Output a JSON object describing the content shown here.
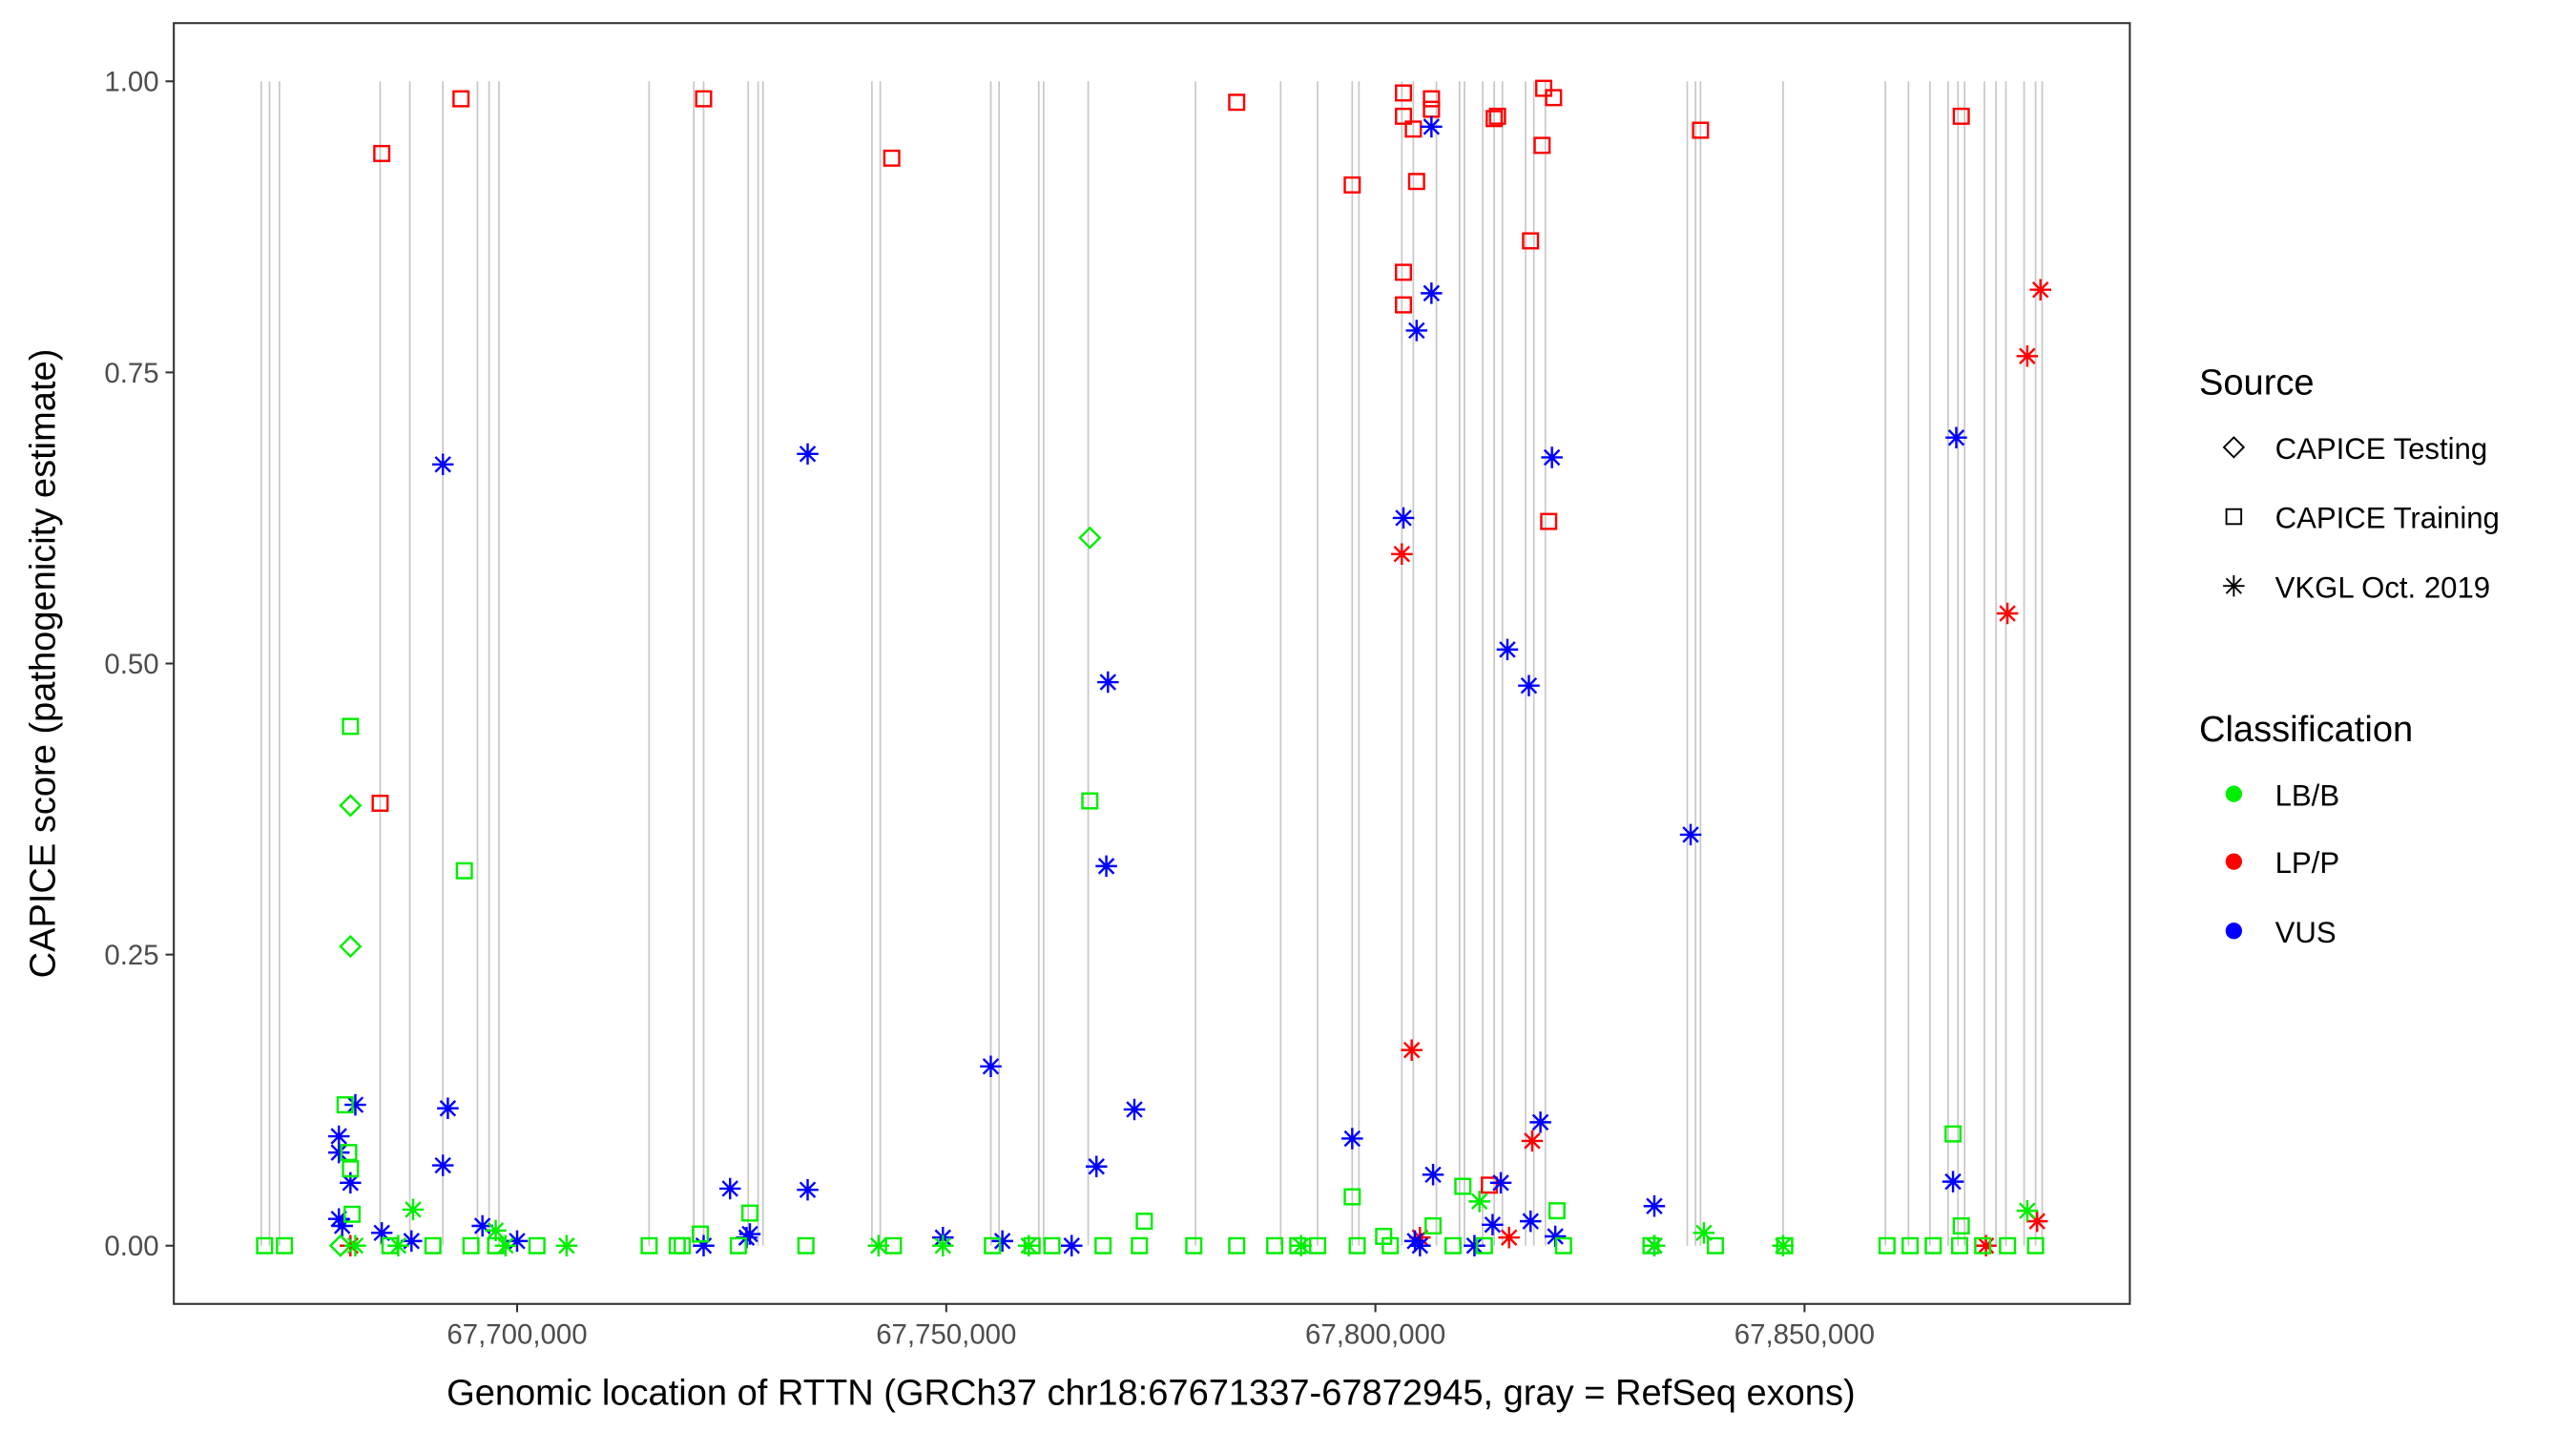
{
  "chart_data": {
    "type": "scatter",
    "title": "",
    "xlabel": "Genomic location of RTTN (GRCh37 chr18:67671337-67872945, gray = RefSeq exons)",
    "ylabel": "CAPICE score (pathogenicity estimate)",
    "xlim": [
      67660000,
      67887900
    ],
    "ylim": [
      -0.05,
      1.05
    ],
    "x_ticks": [
      67700000,
      67750000,
      67800000,
      67850000
    ],
    "x_tick_labels": [
      "67,700,000",
      "67,750,000",
      "67,800,000",
      "67,850,000"
    ],
    "y_ticks": [
      0,
      0.25,
      0.5,
      0.75,
      1.0
    ],
    "y_tick_labels": [
      "0.00",
      "0.25",
      "0.50",
      "0.75",
      "1.00"
    ],
    "grid": false,
    "legend_placement": "right",
    "legend": {
      "source_title": "Source",
      "sources": [
        "CAPICE Testing",
        "CAPICE Training",
        "VKGL Oct. 2019"
      ],
      "source_shapes": [
        "diamond",
        "square",
        "asterisk"
      ],
      "class_title": "Classification",
      "classes": [
        "LB/B",
        "LP/P",
        "VUS"
      ],
      "class_colors": [
        "#00EE00",
        "#FF0000",
        "#0000FF"
      ]
    },
    "exon_color": "#C8C8C8",
    "exons": [
      67670190,
      67671150,
      67672310,
      67684040,
      67687500,
      67691350,
      67695380,
      67696730,
      67697880,
      67715380,
      67720580,
      67721730,
      67726920,
      67728080,
      67728650,
      67741340,
      67742310,
      67755190,
      67756150,
      67760770,
      67761340,
      67766540,
      67779040,
      67788960,
      67793270,
      67797300,
      67798080,
      67803080,
      67804420,
      67807110,
      67809800,
      67810380,
      67812500,
      67813840,
      67814800,
      67817500,
      67818460,
      67819800,
      67836340,
      67837300,
      67837880,
      67847500,
      67859420,
      67862110,
      67864610,
      67866730,
      67867880,
      67868650,
      67870960,
      67872310,
      67873460,
      67875580,
      67876920,
      67877690
    ],
    "points_columns": [
      "position",
      "score",
      "source_index",
      "class_index"
    ],
    "points": [
      [
        67684231,
        0.938,
        1,
        1
      ],
      [
        67693460,
        0.985,
        1,
        1
      ],
      [
        67684040,
        0.38,
        1,
        1
      ],
      [
        67721730,
        0.985,
        1,
        1
      ],
      [
        67743650,
        0.934,
        1,
        1
      ],
      [
        67783840,
        0.982,
        1,
        1
      ],
      [
        67797300,
        0.911,
        1,
        1
      ],
      [
        67803270,
        0.99,
        1,
        1
      ],
      [
        67803270,
        0.97,
        1,
        1
      ],
      [
        67804420,
        0.959,
        1,
        1
      ],
      [
        67806530,
        0.985,
        1,
        1
      ],
      [
        67806530,
        0.976,
        1,
        1
      ],
      [
        67804800,
        0.914,
        1,
        1
      ],
      [
        67803270,
        0.836,
        1,
        1
      ],
      [
        67803270,
        0.808,
        1,
        1
      ],
      [
        67813840,
        0.968,
        1,
        1
      ],
      [
        67814230,
        0.97,
        1,
        1
      ],
      [
        67819610,
        0.994,
        1,
        1
      ],
      [
        67820760,
        0.986,
        1,
        1
      ],
      [
        67819420,
        0.945,
        1,
        1
      ],
      [
        67818080,
        0.863,
        1,
        1
      ],
      [
        67820190,
        0.622,
        1,
        1
      ],
      [
        67837880,
        0.958,
        1,
        1
      ],
      [
        67868260,
        0.97,
        1,
        1
      ],
      [
        67813270,
        0.052,
        1,
        1
      ],
      [
        67803080,
        0.594,
        2,
        1
      ],
      [
        67804230,
        0.168,
        2,
        1
      ],
      [
        67805190,
        0.007,
        2,
        1
      ],
      [
        67815570,
        0.007,
        2,
        1
      ],
      [
        67818270,
        0.09,
        2,
        1
      ],
      [
        67877490,
        0.821,
        2,
        1
      ],
      [
        67875950,
        0.764,
        2,
        1
      ],
      [
        67873640,
        0.543,
        2,
        1
      ],
      [
        67877100,
        0.021,
        2,
        1
      ],
      [
        67871140,
        0.0,
        2,
        1
      ],
      [
        67680580,
        0.0,
        2,
        1
      ],
      [
        67691350,
        0.671,
        2,
        2
      ],
      [
        67733850,
        0.68,
        2,
        2
      ],
      [
        67806530,
        0.961,
        2,
        2
      ],
      [
        67806530,
        0.818,
        2,
        2
      ],
      [
        67804800,
        0.786,
        2,
        2
      ],
      [
        67803270,
        0.625,
        2,
        2
      ],
      [
        67820570,
        0.677,
        2,
        2
      ],
      [
        67815380,
        0.512,
        2,
        2
      ],
      [
        67817880,
        0.481,
        2,
        2
      ],
      [
        67867680,
        0.694,
        2,
        2
      ],
      [
        67836730,
        0.353,
        2,
        2
      ],
      [
        67755190,
        0.154,
        2,
        2
      ],
      [
        67768840,
        0.484,
        2,
        2
      ],
      [
        67768650,
        0.326,
        2,
        2
      ],
      [
        67771920,
        0.117,
        2,
        2
      ],
      [
        67767500,
        0.068,
        2,
        2
      ],
      [
        67797300,
        0.092,
        2,
        2
      ],
      [
        67806720,
        0.061,
        2,
        2
      ],
      [
        67814610,
        0.054,
        2,
        2
      ],
      [
        67819230,
        0.106,
        2,
        2
      ],
      [
        67818080,
        0.021,
        2,
        2
      ],
      [
        67813650,
        0.018,
        2,
        2
      ],
      [
        67867300,
        0.055,
        2,
        2
      ],
      [
        67832500,
        0.034,
        2,
        2
      ],
      [
        67832500,
        0.0,
        2,
        2
      ],
      [
        67679230,
        0.094,
        2,
        2
      ],
      [
        67679230,
        0.08,
        2,
        2
      ],
      [
        67680580,
        0.054,
        2,
        2
      ],
      [
        67681150,
        0.121,
        2,
        2
      ],
      [
        67679230,
        0.023,
        2,
        2
      ],
      [
        67679620,
        0.017,
        2,
        2
      ],
      [
        67684230,
        0.011,
        2,
        2
      ],
      [
        67691350,
        0.069,
        2,
        2
      ],
      [
        67691930,
        0.118,
        2,
        2
      ],
      [
        67695960,
        0.017,
        2,
        2
      ],
      [
        67700000,
        0.004,
        2,
        2
      ],
      [
        67724810,
        0.049,
        2,
        2
      ],
      [
        67733850,
        0.048,
        2,
        2
      ],
      [
        67727120,
        0.01,
        2,
        2
      ],
      [
        67726730,
        0.007,
        2,
        2
      ],
      [
        67721730,
        0.0,
        2,
        2
      ],
      [
        67749610,
        0.007,
        2,
        2
      ],
      [
        67756540,
        0.004,
        2,
        2
      ],
      [
        67764610,
        0.0,
        2,
        2
      ],
      [
        67804610,
        0.004,
        2,
        2
      ],
      [
        67805190,
        0.0,
        2,
        2
      ],
      [
        67811540,
        0.0,
        2,
        2
      ],
      [
        67820960,
        0.008,
        2,
        2
      ],
      [
        67687690,
        0.004,
        2,
        2
      ],
      [
        67680580,
        0.446,
        1,
        0
      ],
      [
        67766730,
        0.382,
        1,
        0
      ],
      [
        67693850,
        0.322,
        1,
        0
      ],
      [
        67679960,
        0.121,
        1,
        0
      ],
      [
        67680380,
        0.08,
        1,
        0
      ],
      [
        67680580,
        0.066,
        1,
        0
      ],
      [
        67680770,
        0.027,
        1,
        0
      ],
      [
        67727120,
        0.028,
        1,
        0
      ],
      [
        67867300,
        0.096,
        1,
        0
      ],
      [
        67797300,
        0.042,
        1,
        0
      ],
      [
        67810190,
        0.051,
        1,
        0
      ],
      [
        67821150,
        0.03,
        1,
        0
      ],
      [
        67773070,
        0.021,
        1,
        0
      ],
      [
        67806720,
        0.017,
        1,
        0
      ],
      [
        67868260,
        0.017,
        1,
        0
      ],
      [
        67800960,
        0.008,
        1,
        0
      ],
      [
        67721350,
        0.01,
        1,
        0
      ],
      [
        67670580,
        0,
        1,
        0
      ],
      [
        67672890,
        0,
        1,
        0
      ],
      [
        67685190,
        0,
        1,
        0
      ],
      [
        67690190,
        0,
        1,
        0
      ],
      [
        67694620,
        0,
        1,
        0
      ],
      [
        67697500,
        0,
        1,
        0
      ],
      [
        67702310,
        0,
        1,
        0
      ],
      [
        67715380,
        0,
        1,
        0
      ],
      [
        67718650,
        0,
        1,
        0
      ],
      [
        67719230,
        0,
        1,
        0
      ],
      [
        67725770,
        0,
        1,
        0
      ],
      [
        67733650,
        0,
        1,
        0
      ],
      [
        67743840,
        0,
        1,
        0
      ],
      [
        67755380,
        0,
        1,
        0
      ],
      [
        67760000,
        0,
        1,
        0
      ],
      [
        67762310,
        0,
        1,
        0
      ],
      [
        67768270,
        0,
        1,
        0
      ],
      [
        67772500,
        0,
        1,
        0
      ],
      [
        67778840,
        0,
        1,
        0
      ],
      [
        67783840,
        0,
        1,
        0
      ],
      [
        67788270,
        0,
        1,
        0
      ],
      [
        67790960,
        0,
        1,
        0
      ],
      [
        67793270,
        0,
        1,
        0
      ],
      [
        67797880,
        0,
        1,
        0
      ],
      [
        67801730,
        0,
        1,
        0
      ],
      [
        67809040,
        0,
        1,
        0
      ],
      [
        67812690,
        0,
        1,
        0
      ],
      [
        67821920,
        0,
        1,
        0
      ],
      [
        67832110,
        0,
        1,
        0
      ],
      [
        67839610,
        0,
        1,
        0
      ],
      [
        67847690,
        0,
        1,
        0
      ],
      [
        67859610,
        0,
        1,
        0
      ],
      [
        67862300,
        0,
        1,
        0
      ],
      [
        67864990,
        0,
        1,
        0
      ],
      [
        67868070,
        0,
        1,
        0
      ],
      [
        67870760,
        0,
        1,
        0
      ],
      [
        67873650,
        0,
        1,
        0
      ],
      [
        67876920,
        0,
        1,
        0
      ],
      [
        67766730,
        0.608,
        0,
        0
      ],
      [
        67680580,
        0.378,
        0,
        0
      ],
      [
        67680580,
        0.257,
        0,
        0
      ],
      [
        67679420,
        0.0,
        0,
        0
      ],
      [
        67687880,
        0.031,
        2,
        0
      ],
      [
        67812120,
        0.038,
        2,
        0
      ],
      [
        67875950,
        0.03,
        2,
        0
      ],
      [
        67838270,
        0.011,
        2,
        0
      ],
      [
        67697500,
        0.013,
        2,
        0
      ],
      [
        67705770,
        0,
        2,
        0
      ],
      [
        67742110,
        0,
        2,
        0
      ],
      [
        67749610,
        0,
        2,
        0
      ],
      [
        67791340,
        0,
        2,
        0
      ],
      [
        67847500,
        0,
        2,
        0
      ],
      [
        67832500,
        0,
        2,
        0
      ],
      [
        67759610,
        0,
        2,
        0
      ],
      [
        67681150,
        0,
        2,
        0
      ],
      [
        67686150,
        0,
        2,
        0
      ],
      [
        67698650,
        0,
        2,
        0
      ]
    ]
  }
}
